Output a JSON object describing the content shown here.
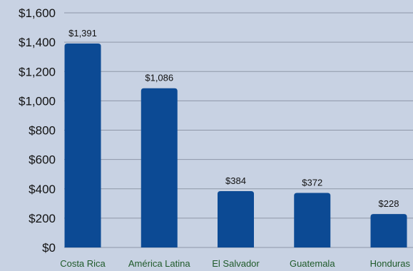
{
  "chart_data": {
    "type": "bar",
    "title": "",
    "xlabel": "",
    "ylabel": "",
    "categories": [
      "Costa Rica",
      "América Latina",
      "El Salvador",
      "Guatemala",
      "Honduras"
    ],
    "values": [
      1391,
      1086,
      384,
      372,
      228
    ],
    "data_labels": [
      "$1,391",
      "$1,086",
      "$384",
      "$372",
      "$228"
    ],
    "ylim": [
      0,
      1600
    ],
    "yticks": [
      0,
      200,
      400,
      600,
      800,
      1000,
      1200,
      1400,
      1600
    ],
    "ytick_labels": [
      "$0",
      "$200",
      "$400",
      "$600",
      "$800",
      "$1,000",
      "$1,200",
      "$1,400",
      "$1,600"
    ],
    "grid": true,
    "legend": "none",
    "colors": {
      "bar": "#0c4a94",
      "background": "#c8d2e3",
      "grid": "#8e97a8",
      "category_text": "#1f5a2a"
    }
  }
}
